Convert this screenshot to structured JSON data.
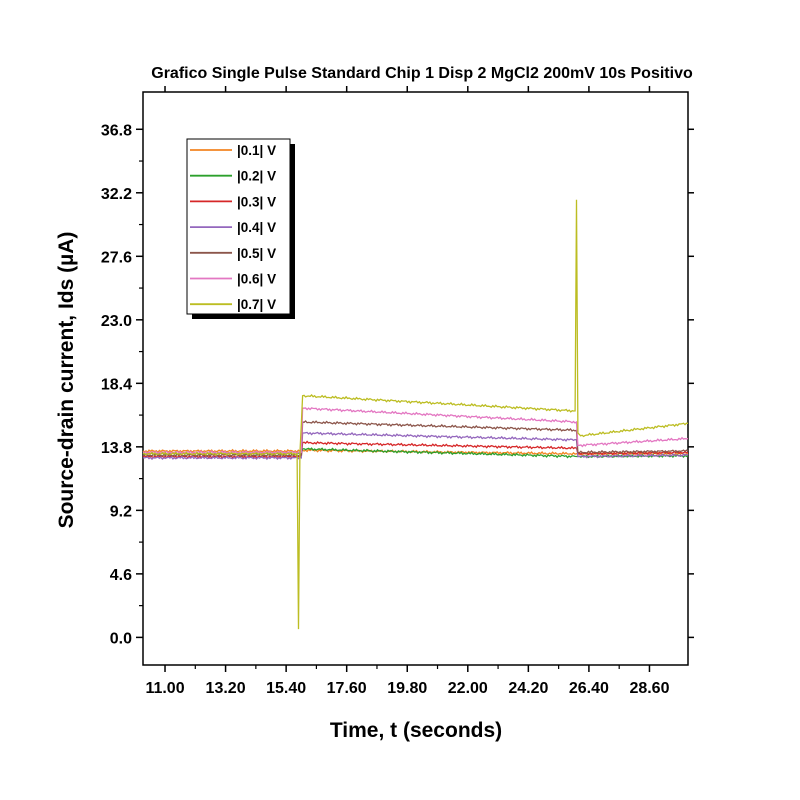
{
  "chart_data": {
    "type": "line",
    "title": "Grafico Single Pulse Standard Chip 1 Disp 2 MgCl2 200mV 10s Positivo",
    "xlabel": "Time, t (seconds)",
    "ylabel": "Source-drain current, Ids (µA)",
    "xlim": [
      10.2,
      30.0
    ],
    "ylim": [
      -2.0,
      39.5
    ],
    "xticks": [
      "11.00",
      "13.20",
      "15.40",
      "17.60",
      "19.80",
      "22.00",
      "24.20",
      "26.40",
      "28.60"
    ],
    "xtick_values": [
      11.0,
      13.2,
      15.4,
      17.6,
      19.8,
      22.0,
      24.2,
      26.4,
      28.6
    ],
    "yticks": [
      "0.0",
      "4.6",
      "9.2",
      "13.8",
      "18.4",
      "23.0",
      "27.6",
      "32.2",
      "36.8"
    ],
    "ytick_values": [
      0.0,
      4.6,
      9.2,
      13.8,
      18.4,
      23.0,
      27.6,
      32.2,
      36.8
    ],
    "legend_position": "top-left",
    "grid": false,
    "series": [
      {
        "name": "|0.1| V",
        "color": "#f28522",
        "x": [
          10.2,
          15.95,
          16.0,
          25.95,
          26.0,
          30.0
        ],
        "y": [
          13.5,
          13.5,
          13.55,
          13.3,
          13.3,
          13.3
        ]
      },
      {
        "name": "|0.2| V",
        "color": "#2ca02c",
        "x": [
          10.2,
          15.95,
          16.0,
          25.95,
          26.0,
          30.0
        ],
        "y": [
          13.3,
          13.3,
          13.65,
          13.1,
          13.1,
          13.15
        ]
      },
      {
        "name": "|0.3| V",
        "color": "#d62728",
        "x": [
          10.2,
          15.95,
          16.0,
          25.95,
          26.0,
          30.0
        ],
        "y": [
          13.1,
          13.1,
          14.1,
          13.7,
          13.3,
          13.4
        ]
      },
      {
        "name": "|0.4| V",
        "color": "#9467bd",
        "x": [
          10.2,
          15.95,
          16.0,
          25.95,
          26.0,
          30.0
        ],
        "y": [
          13.0,
          13.0,
          14.8,
          14.3,
          13.1,
          13.2
        ]
      },
      {
        "name": "|0.5| V",
        "color": "#8c564b",
        "x": [
          10.2,
          15.95,
          16.0,
          25.95,
          26.0,
          30.0
        ],
        "y": [
          13.2,
          13.2,
          15.6,
          15.0,
          13.4,
          13.5
        ]
      },
      {
        "name": "|0.6| V",
        "color": "#e377c2",
        "x": [
          10.2,
          15.95,
          16.0,
          25.95,
          26.0,
          30.0
        ],
        "y": [
          13.4,
          13.4,
          16.6,
          15.6,
          13.9,
          14.4
        ]
      },
      {
        "name": "|0.7| V",
        "color": "#bcbd22",
        "x": [
          10.2,
          15.8,
          15.85,
          15.9,
          16.0,
          25.9,
          25.95,
          26.0,
          26.1,
          30.0
        ],
        "y": [
          13.3,
          13.3,
          0.6,
          13.3,
          17.5,
          16.4,
          31.7,
          14.8,
          14.6,
          15.5
        ]
      }
    ]
  }
}
